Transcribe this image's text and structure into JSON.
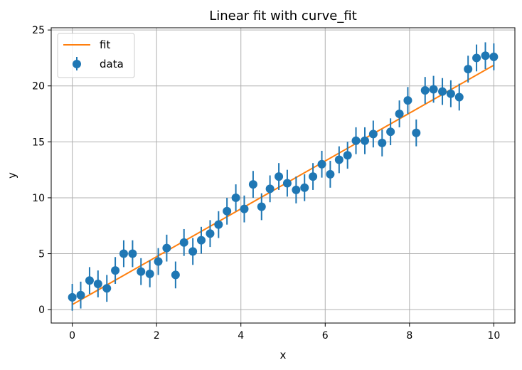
{
  "chart_data": {
    "type": "scatter",
    "title": "Linear fit with curve_fit",
    "xlabel": "x",
    "ylabel": "y",
    "xlim": [
      -0.5,
      10.5
    ],
    "ylim": [
      -1.2,
      25.2
    ],
    "xticks": [
      0,
      2,
      4,
      6,
      8,
      10
    ],
    "yticks": [
      0,
      5,
      10,
      15,
      20,
      25
    ],
    "grid": true,
    "legend_position": "top-left",
    "series": [
      {
        "name": "fit",
        "kind": "line",
        "color": "#ff7f0e",
        "x": [
          0,
          10
        ],
        "y": [
          0.45,
          21.85
        ]
      },
      {
        "name": "data",
        "kind": "errorbar",
        "color": "#1f77b4",
        "error": 1.2,
        "x": [
          0.0,
          0.2,
          0.41,
          0.61,
          0.82,
          1.02,
          1.22,
          1.43,
          1.63,
          1.84,
          2.04,
          2.24,
          2.45,
          2.65,
          2.86,
          3.06,
          3.27,
          3.47,
          3.67,
          3.88,
          4.08,
          4.29,
          4.49,
          4.69,
          4.9,
          5.1,
          5.31,
          5.51,
          5.71,
          5.92,
          6.12,
          6.33,
          6.53,
          6.73,
          6.94,
          7.14,
          7.35,
          7.55,
          7.76,
          7.96,
          8.16,
          8.37,
          8.57,
          8.78,
          8.98,
          9.18,
          9.39,
          9.59,
          9.8,
          10.0
        ],
        "y": [
          1.1,
          1.3,
          2.6,
          2.3,
          1.9,
          3.5,
          5.0,
          5.0,
          3.4,
          3.2,
          4.3,
          5.5,
          3.1,
          6.0,
          5.2,
          6.2,
          6.8,
          7.6,
          8.8,
          10.0,
          9.0,
          11.2,
          9.2,
          10.8,
          11.9,
          11.3,
          10.7,
          10.9,
          11.9,
          13.0,
          12.1,
          13.4,
          13.8,
          15.1,
          15.1,
          15.7,
          14.9,
          15.9,
          17.5,
          18.7,
          15.8,
          19.6,
          19.7,
          19.5,
          19.3,
          19.0,
          21.5,
          22.5,
          22.7,
          22.6
        ]
      }
    ]
  }
}
